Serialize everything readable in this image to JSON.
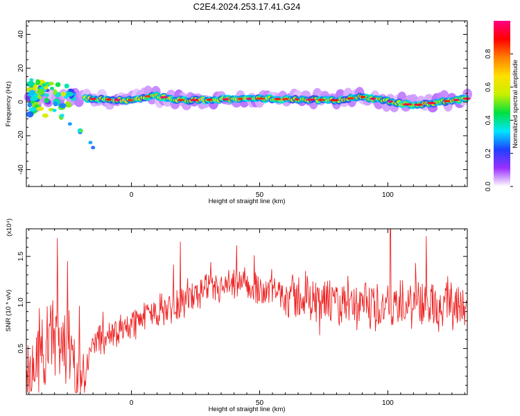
{
  "title": "C2E4.2024.253.17.41.G24",
  "chart_data": [
    {
      "type": "heatmap",
      "xlabel": "Height of straight line (km)",
      "ylabel": "Frequency (Hz)",
      "xlim": [
        -41,
        131
      ],
      "ylim": [
        -50,
        48
      ],
      "xticks": [
        0,
        50,
        100
      ],
      "yticks": [
        -40,
        -20,
        0,
        20,
        40
      ],
      "colorbar": {
        "label": "Normalized spectral amplitude",
        "range": [
          0,
          1
        ],
        "ticks": [
          "0.0",
          "0.2",
          "0.4",
          "0.6",
          "0.8"
        ],
        "colormap": [
          "#ffffff",
          "#9b30ff",
          "#2040ff",
          "#00e5ff",
          "#00e040",
          "#c8f000",
          "#ffe000",
          "#ff8000",
          "#ff0000",
          "#ff0080"
        ]
      },
      "ridge": {
        "description_values": [
          [
            -38,
            0
          ],
          [
            -30,
            2
          ],
          [
            -20,
            2
          ],
          [
            0,
            1
          ],
          [
            8,
            4
          ],
          [
            20,
            1
          ],
          [
            50,
            2
          ],
          [
            80,
            1
          ],
          [
            90,
            3
          ],
          [
            110,
            -2
          ],
          [
            131,
            2
          ]
        ]
      }
    },
    {
      "type": "line",
      "xlabel": "Height of straight line (km)",
      "ylabel": "SNR (10 * v/v)",
      "multiplier": "(x10⁴)",
      "xlim": [
        -41,
        131
      ],
      "ylim": [
        0,
        1.8
      ],
      "xticks": [
        0,
        50,
        100
      ],
      "yticks": [
        "0.5",
        "1.0",
        "1.5"
      ],
      "series": [
        {
          "color": "#ee2222",
          "trend": [
            [
              -41,
              0.1
            ],
            [
              -36,
              0.45
            ],
            [
              -32,
              0.6
            ],
            [
              -27,
              0.55
            ],
            [
              -23,
              0.4
            ],
            [
              -19,
              0.15
            ],
            [
              -15,
              0.55
            ],
            [
              -5,
              0.7
            ],
            [
              5,
              0.85
            ],
            [
              15,
              0.95
            ],
            [
              25,
              1.08
            ],
            [
              35,
              1.15
            ],
            [
              45,
              1.18
            ],
            [
              55,
              1.12
            ],
            [
              65,
              1.05
            ],
            [
              75,
              1.0
            ],
            [
              85,
              0.95
            ],
            [
              95,
              0.95
            ],
            [
              105,
              0.95
            ],
            [
              115,
              0.98
            ],
            [
              125,
              1.0
            ],
            [
              131,
              1.0
            ]
          ],
          "peaks": [
            [
              -29,
              1.7
            ],
            [
              -25,
              1.45
            ],
            [
              19,
              1.66
            ],
            [
              41,
              1.62
            ],
            [
              101,
              1.8
            ],
            [
              115,
              1.72
            ]
          ]
        }
      ]
    }
  ]
}
